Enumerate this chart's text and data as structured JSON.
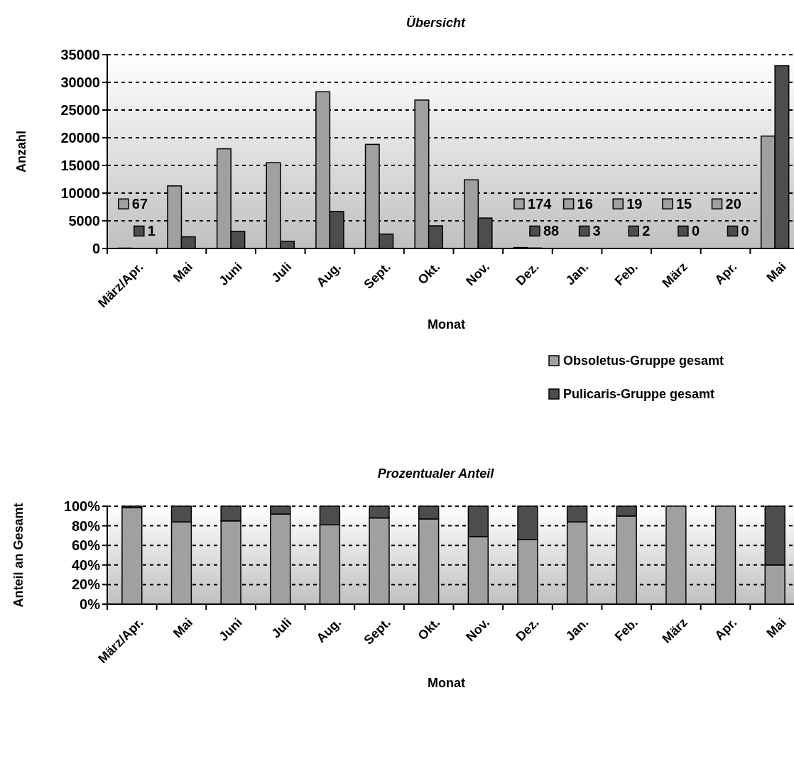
{
  "chart_data": [
    {
      "type": "bar",
      "title": "Übersicht",
      "xlabel": "Monat",
      "ylabel": "Anzahl",
      "categories": [
        "März/Apr.",
        "Mai",
        "Juni",
        "Juli",
        "Aug.",
        "Sept.",
        "Okt.",
        "Nov.",
        "Dez.",
        "Jan.",
        "Feb.",
        "März",
        "Apr.",
        "Mai"
      ],
      "series": [
        {
          "name": "Obsoletus-Gruppe gesamt",
          "color": "#a0a0a0",
          "values": [
            67,
            11300,
            18000,
            15500,
            28300,
            18800,
            26800,
            12400,
            174,
            16,
            19,
            15,
            20,
            20300
          ],
          "value_labels": [
            "67",
            null,
            null,
            null,
            null,
            null,
            null,
            null,
            "174",
            "16",
            "19",
            "15",
            "20",
            null
          ]
        },
        {
          "name": "Pulicaris-Gruppe gesamt",
          "color": "#4d4d4d",
          "values": [
            1,
            2100,
            3100,
            1300,
            6700,
            2600,
            4100,
            5500,
            88,
            3,
            2,
            0,
            0,
            33000
          ],
          "value_labels": [
            "1",
            null,
            null,
            null,
            null,
            null,
            null,
            null,
            "88",
            "3",
            "2",
            "0",
            "0",
            null
          ]
        }
      ],
      "ylim": [
        0,
        35000
      ],
      "yticks": [
        0,
        5000,
        10000,
        15000,
        20000,
        25000,
        30000,
        35000
      ],
      "grid": "y",
      "legend": "bottom right"
    },
    {
      "type": "bar",
      "stacked": true,
      "title": "Prozentualer Anteil",
      "xlabel": "Monat",
      "ylabel": "Anteil an Gesamt",
      "categories": [
        "März/Apr.",
        "Mai",
        "Juni",
        "Juli",
        "Aug.",
        "Sept.",
        "Okt.",
        "Nov.",
        "Dez.",
        "Jan.",
        "Feb.",
        "März",
        "Apr.",
        "Mai"
      ],
      "series": [
        {
          "color": "#a0a0a0",
          "values": [
            98.5,
            84,
            85,
            92,
            81,
            88,
            87,
            69,
            66,
            84,
            90,
            100,
            100,
            40
          ]
        },
        {
          "color": "#4d4d4d",
          "values": [
            1.5,
            16,
            15,
            8,
            19,
            12,
            13,
            31,
            34,
            16,
            10,
            0,
            0,
            60
          ]
        }
      ],
      "ylim": [
        0,
        100
      ],
      "yticks": [
        {
          "value": 0,
          "label": "0%"
        },
        {
          "value": 20,
          "label": "20%"
        },
        {
          "value": 40,
          "label": "40%"
        },
        {
          "value": 60,
          "label": "60%"
        },
        {
          "value": 80,
          "label": "80%"
        },
        {
          "value": 100,
          "label": "100%"
        }
      ],
      "grid": "y",
      "legend": false
    }
  ]
}
